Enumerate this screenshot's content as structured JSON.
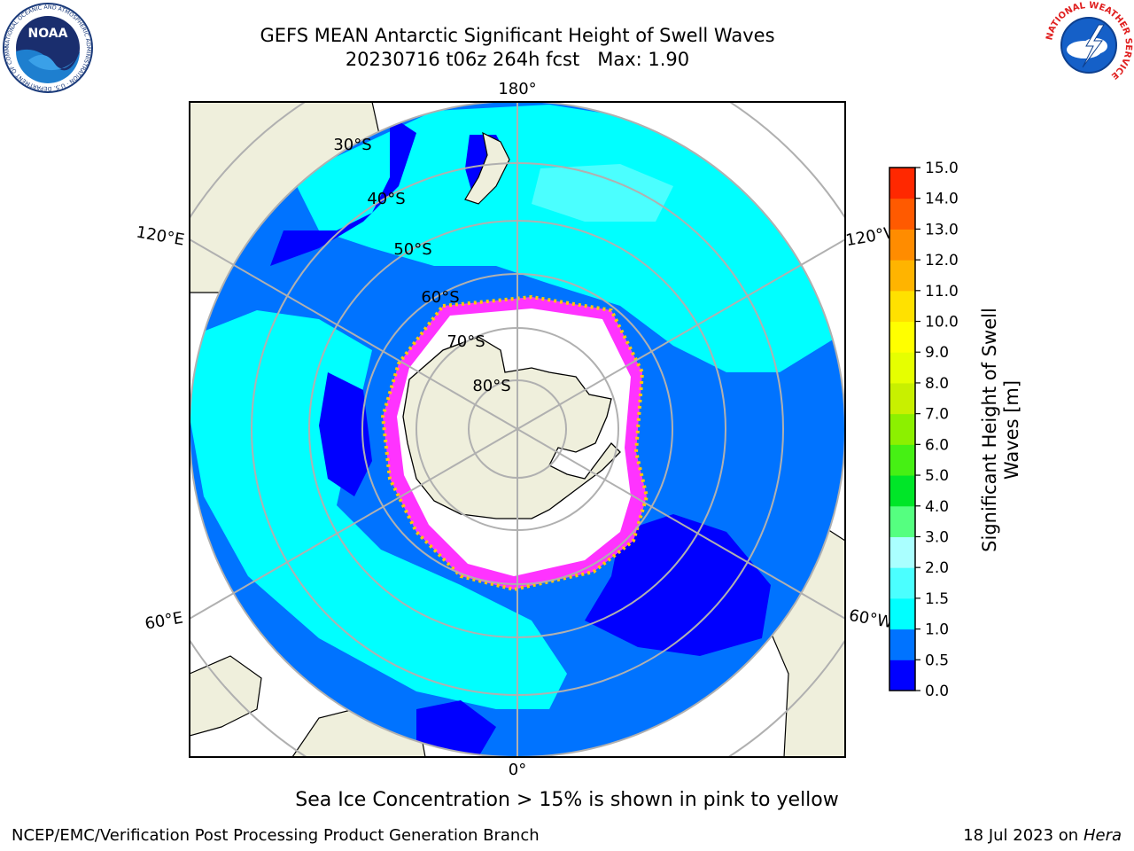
{
  "header": {
    "title_line1": "GEFS MEAN Antarctic Significant Height of Swell Waves",
    "title_line2": "20230716 t06z 264h fcst   Max: 1.90"
  },
  "logos": {
    "noaa": {
      "text": "NOAA",
      "ring_text": "NATIONAL OCEANIC AND ATMOSPHERIC ADMINISTRATION · U.S. DEPARTMENT OF COMMERCE"
    },
    "nws": {
      "ring_text": "NATIONAL WEATHER SERVICE"
    }
  },
  "map": {
    "projection": "south-polar-stereographic",
    "longitude_labels": {
      "top": "180°",
      "bottom": "0°",
      "upper_left": "120°E",
      "upper_right": "120°W",
      "lower_left": "60°E",
      "lower_right": "60°W"
    },
    "latitude_labels": [
      "30°S",
      "40°S",
      "50°S",
      "60°S",
      "70°S",
      "80°S"
    ],
    "colors": {
      "land": "#efefdc",
      "ice_free_white": "#ffffff",
      "class_0_0_5": "#0000ff",
      "class_0_5_1_0": "#0073ff",
      "class_1_0_1_5": "#00ffff",
      "class_1_5_2_0": "#4bffff",
      "sea_ice_pink": "#ff33ff",
      "sea_ice_yellow": "#ffc800",
      "graticule": "#b0b0b0"
    }
  },
  "colorbar": {
    "ticks": [
      "0.0",
      "0.5",
      "1.0",
      "1.5",
      "2.0",
      "3.0",
      "4.0",
      "5.0",
      "6.0",
      "7.0",
      "8.0",
      "9.0",
      "10.0",
      "11.0",
      "12.0",
      "13.0",
      "14.0",
      "15.0"
    ],
    "colors": [
      "#0000ff",
      "#0073ff",
      "#00ffff",
      "#4bffff",
      "#aaffff",
      "#55ff80",
      "#00e628",
      "#46f014",
      "#8cf000",
      "#c8f000",
      "#e6ff00",
      "#ffff00",
      "#ffe100",
      "#ffb400",
      "#ff8c00",
      "#ff5a00",
      "#ff2800"
    ],
    "label": "Significant Height of Swell\nWaves [m]"
  },
  "subtitle": "Sea Ice Concentration > 15% is shown in pink to yellow",
  "footer": {
    "left": "NCEP/EMC/Verification Post Processing Product Generation Branch",
    "right_prefix": "18 Jul 2023 on ",
    "right_host": "Hera"
  }
}
